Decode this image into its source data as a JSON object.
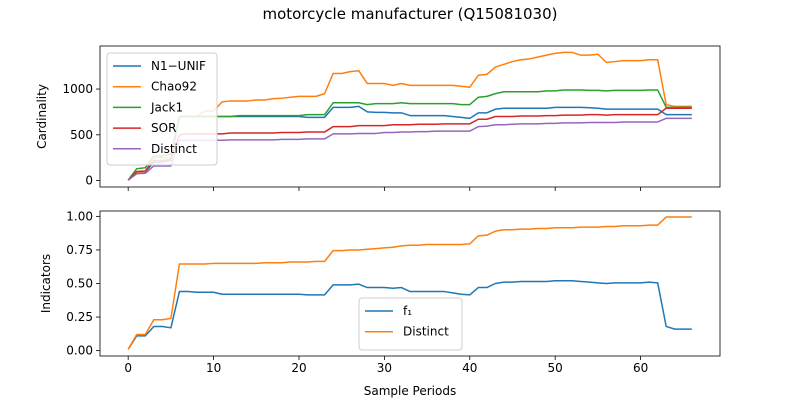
{
  "figure": {
    "title": "motorcycle manufacturer (Q15081030)"
  },
  "chart_data": [
    {
      "type": "line",
      "xlabel": "",
      "ylabel": "Cardinality",
      "xlim": [
        -3.3,
        69.3
      ],
      "ylim": [
        -70,
        1470
      ],
      "xticks": [
        0,
        10,
        20,
        30,
        40,
        50,
        60
      ],
      "xtick_labels_visible": false,
      "yticks": [
        0,
        500,
        1000
      ],
      "legend_loc": "upper left",
      "grid": false,
      "series": [
        {
          "name": "N1−UNIF",
          "color": "#1f77b4",
          "x": [
            0,
            1,
            2,
            3,
            4,
            5,
            6,
            7,
            8,
            9,
            10,
            11,
            12,
            13,
            14,
            15,
            16,
            17,
            18,
            19,
            20,
            21,
            22,
            23,
            24,
            25,
            26,
            27,
            28,
            29,
            30,
            31,
            32,
            33,
            34,
            35,
            36,
            37,
            38,
            39,
            40,
            41,
            42,
            43,
            44,
            45,
            46,
            47,
            48,
            49,
            50,
            51,
            52,
            53,
            54,
            55,
            56,
            57,
            58,
            59,
            60,
            61,
            62,
            63,
            64,
            65,
            66
          ],
          "y": [
            5,
            90,
            95,
            200,
            200,
            220,
            700,
            700,
            700,
            700,
            700,
            700,
            700,
            700,
            700,
            700,
            700,
            700,
            700,
            700,
            700,
            690,
            690,
            690,
            800,
            800,
            800,
            810,
            750,
            745,
            745,
            740,
            740,
            710,
            710,
            710,
            710,
            710,
            700,
            690,
            680,
            740,
            740,
            780,
            790,
            790,
            790,
            790,
            790,
            790,
            800,
            800,
            800,
            800,
            795,
            790,
            780,
            780,
            780,
            780,
            780,
            780,
            780,
            720,
            720,
            720,
            720
          ]
        },
        {
          "name": "Chao92",
          "color": "#ff7f0e",
          "x": [
            0,
            1,
            2,
            3,
            4,
            5,
            6,
            7,
            8,
            9,
            10,
            11,
            12,
            13,
            14,
            15,
            16,
            17,
            18,
            19,
            20,
            21,
            22,
            23,
            24,
            25,
            26,
            27,
            28,
            29,
            30,
            31,
            32,
            33,
            34,
            35,
            36,
            37,
            38,
            39,
            40,
            41,
            42,
            43,
            44,
            45,
            46,
            47,
            48,
            49,
            50,
            51,
            52,
            53,
            54,
            55,
            56,
            57,
            58,
            59,
            60,
            61,
            62,
            63,
            64,
            65,
            66
          ],
          "y": [
            5,
            90,
            100,
            250,
            250,
            250,
            700,
            700,
            700,
            760,
            760,
            860,
            870,
            870,
            870,
            880,
            880,
            895,
            900,
            910,
            920,
            920,
            920,
            950,
            1170,
            1170,
            1190,
            1200,
            1060,
            1060,
            1060,
            1040,
            1060,
            1040,
            1040,
            1040,
            1040,
            1040,
            1040,
            1030,
            1020,
            1150,
            1160,
            1240,
            1270,
            1300,
            1320,
            1330,
            1350,
            1370,
            1390,
            1400,
            1400,
            1370,
            1370,
            1380,
            1290,
            1300,
            1310,
            1310,
            1310,
            1320,
            1320,
            830,
            810,
            810,
            810
          ]
        },
        {
          "name": "Jack1",
          "color": "#2ca02c",
          "x": [
            0,
            1,
            2,
            3,
            4,
            5,
            6,
            7,
            8,
            9,
            10,
            11,
            12,
            13,
            14,
            15,
            16,
            17,
            18,
            19,
            20,
            21,
            22,
            23,
            24,
            25,
            26,
            27,
            28,
            29,
            30,
            31,
            32,
            33,
            34,
            35,
            36,
            37,
            38,
            39,
            40,
            41,
            42,
            43,
            44,
            45,
            46,
            47,
            48,
            49,
            50,
            51,
            52,
            53,
            54,
            55,
            56,
            57,
            58,
            59,
            60,
            61,
            62,
            63,
            64,
            65,
            66
          ],
          "y": [
            5,
            130,
            140,
            270,
            270,
            290,
            700,
            700,
            700,
            700,
            700,
            700,
            700,
            710,
            710,
            710,
            710,
            710,
            710,
            710,
            710,
            720,
            720,
            720,
            850,
            850,
            850,
            850,
            830,
            840,
            840,
            840,
            850,
            840,
            840,
            840,
            840,
            840,
            840,
            830,
            830,
            910,
            920,
            950,
            970,
            970,
            970,
            970,
            970,
            980,
            980,
            990,
            990,
            990,
            985,
            985,
            980,
            985,
            985,
            985,
            985,
            990,
            990,
            800,
            800,
            800,
            800
          ]
        },
        {
          "name": "SOR",
          "color": "#d62728",
          "x": [
            0,
            1,
            2,
            3,
            4,
            5,
            6,
            7,
            8,
            9,
            10,
            11,
            12,
            13,
            14,
            15,
            16,
            17,
            18,
            19,
            20,
            21,
            22,
            23,
            24,
            25,
            26,
            27,
            28,
            29,
            30,
            31,
            32,
            33,
            34,
            35,
            36,
            37,
            38,
            39,
            40,
            41,
            42,
            43,
            44,
            45,
            46,
            47,
            48,
            49,
            50,
            51,
            52,
            53,
            54,
            55,
            56,
            57,
            58,
            59,
            60,
            61,
            62,
            63,
            64,
            65,
            66
          ],
          "y": [
            5,
            100,
            105,
            220,
            220,
            230,
            500,
            510,
            510,
            510,
            510,
            510,
            520,
            520,
            520,
            520,
            520,
            520,
            525,
            525,
            525,
            530,
            530,
            530,
            590,
            590,
            590,
            600,
            600,
            600,
            600,
            610,
            610,
            610,
            615,
            615,
            615,
            620,
            620,
            620,
            620,
            670,
            670,
            700,
            700,
            700,
            705,
            705,
            705,
            710,
            710,
            715,
            715,
            715,
            720,
            720,
            715,
            720,
            720,
            720,
            720,
            720,
            720,
            790,
            790,
            790,
            790
          ]
        },
        {
          "name": "Distinct",
          "color": "#9467bd",
          "x": [
            0,
            1,
            2,
            3,
            4,
            5,
            6,
            7,
            8,
            9,
            10,
            11,
            12,
            13,
            14,
            15,
            16,
            17,
            18,
            19,
            20,
            21,
            22,
            23,
            24,
            25,
            26,
            27,
            28,
            29,
            30,
            31,
            32,
            33,
            34,
            35,
            36,
            37,
            38,
            39,
            40,
            41,
            42,
            43,
            44,
            45,
            46,
            47,
            48,
            49,
            50,
            51,
            52,
            53,
            54,
            55,
            56,
            57,
            58,
            59,
            60,
            61,
            62,
            63,
            64,
            65,
            66
          ],
          "y": [
            5,
            75,
            80,
            160,
            160,
            160,
            440,
            440,
            440,
            440,
            440,
            440,
            445,
            445,
            445,
            445,
            445,
            445,
            450,
            450,
            450,
            455,
            455,
            455,
            510,
            510,
            510,
            515,
            515,
            515,
            525,
            525,
            530,
            530,
            535,
            535,
            540,
            540,
            540,
            540,
            540,
            590,
            595,
            610,
            610,
            615,
            620,
            620,
            620,
            625,
            625,
            630,
            630,
            630,
            635,
            635,
            635,
            635,
            640,
            640,
            640,
            640,
            640,
            680,
            680,
            680,
            680
          ]
        }
      ]
    },
    {
      "type": "line",
      "xlabel": "Sample Periods",
      "ylabel": "Indicators",
      "xlim": [
        -3.3,
        69.3
      ],
      "ylim": [
        -0.04,
        1.04
      ],
      "xticks": [
        0,
        10,
        20,
        30,
        40,
        50,
        60
      ],
      "xtick_labels_visible": true,
      "yticks": [
        0.0,
        0.25,
        0.5,
        0.75,
        1.0
      ],
      "ytick_labels": [
        "0.00",
        "0.25",
        "0.50",
        "0.75",
        "1.00"
      ],
      "legend_loc": "lower center",
      "grid": false,
      "series": [
        {
          "name": "f₁",
          "color": "#1f77b4",
          "x": [
            0,
            1,
            2,
            3,
            4,
            5,
            6,
            7,
            8,
            9,
            10,
            11,
            12,
            13,
            14,
            15,
            16,
            17,
            18,
            19,
            20,
            21,
            22,
            23,
            24,
            25,
            26,
            27,
            28,
            29,
            30,
            31,
            32,
            33,
            34,
            35,
            36,
            37,
            38,
            39,
            40,
            41,
            42,
            43,
            44,
            45,
            46,
            47,
            48,
            49,
            50,
            51,
            52,
            53,
            54,
            55,
            56,
            57,
            58,
            59,
            60,
            61,
            62,
            63,
            64,
            65,
            66
          ],
          "y": [
            0.01,
            0.11,
            0.11,
            0.18,
            0.18,
            0.17,
            0.44,
            0.44,
            0.435,
            0.435,
            0.435,
            0.42,
            0.42,
            0.42,
            0.42,
            0.42,
            0.42,
            0.42,
            0.42,
            0.42,
            0.42,
            0.415,
            0.415,
            0.415,
            0.49,
            0.49,
            0.49,
            0.495,
            0.47,
            0.47,
            0.47,
            0.465,
            0.47,
            0.44,
            0.44,
            0.44,
            0.44,
            0.44,
            0.43,
            0.42,
            0.415,
            0.47,
            0.47,
            0.5,
            0.51,
            0.51,
            0.515,
            0.515,
            0.515,
            0.515,
            0.52,
            0.52,
            0.52,
            0.515,
            0.51,
            0.505,
            0.5,
            0.505,
            0.505,
            0.505,
            0.505,
            0.51,
            0.505,
            0.18,
            0.16,
            0.16,
            0.16
          ]
        },
        {
          "name": "Distinct",
          "color": "#ff7f0e",
          "x": [
            0,
            1,
            2,
            3,
            4,
            5,
            6,
            7,
            8,
            9,
            10,
            11,
            12,
            13,
            14,
            15,
            16,
            17,
            18,
            19,
            20,
            21,
            22,
            23,
            24,
            25,
            26,
            27,
            28,
            29,
            30,
            31,
            32,
            33,
            34,
            35,
            36,
            37,
            38,
            39,
            40,
            41,
            42,
            43,
            44,
            45,
            46,
            47,
            48,
            49,
            50,
            51,
            52,
            53,
            54,
            55,
            56,
            57,
            58,
            59,
            60,
            61,
            62,
            63,
            64,
            65,
            66
          ],
          "y": [
            0.01,
            0.12,
            0.12,
            0.23,
            0.23,
            0.24,
            0.645,
            0.645,
            0.645,
            0.645,
            0.65,
            0.65,
            0.65,
            0.65,
            0.65,
            0.65,
            0.655,
            0.655,
            0.655,
            0.66,
            0.66,
            0.66,
            0.665,
            0.665,
            0.745,
            0.745,
            0.75,
            0.75,
            0.755,
            0.76,
            0.765,
            0.77,
            0.78,
            0.785,
            0.785,
            0.79,
            0.79,
            0.79,
            0.79,
            0.79,
            0.795,
            0.855,
            0.86,
            0.89,
            0.9,
            0.9,
            0.905,
            0.905,
            0.91,
            0.91,
            0.915,
            0.915,
            0.915,
            0.92,
            0.92,
            0.92,
            0.925,
            0.925,
            0.93,
            0.93,
            0.93,
            0.935,
            0.935,
            0.995,
            0.995,
            0.995,
            0.995
          ]
        }
      ]
    }
  ]
}
